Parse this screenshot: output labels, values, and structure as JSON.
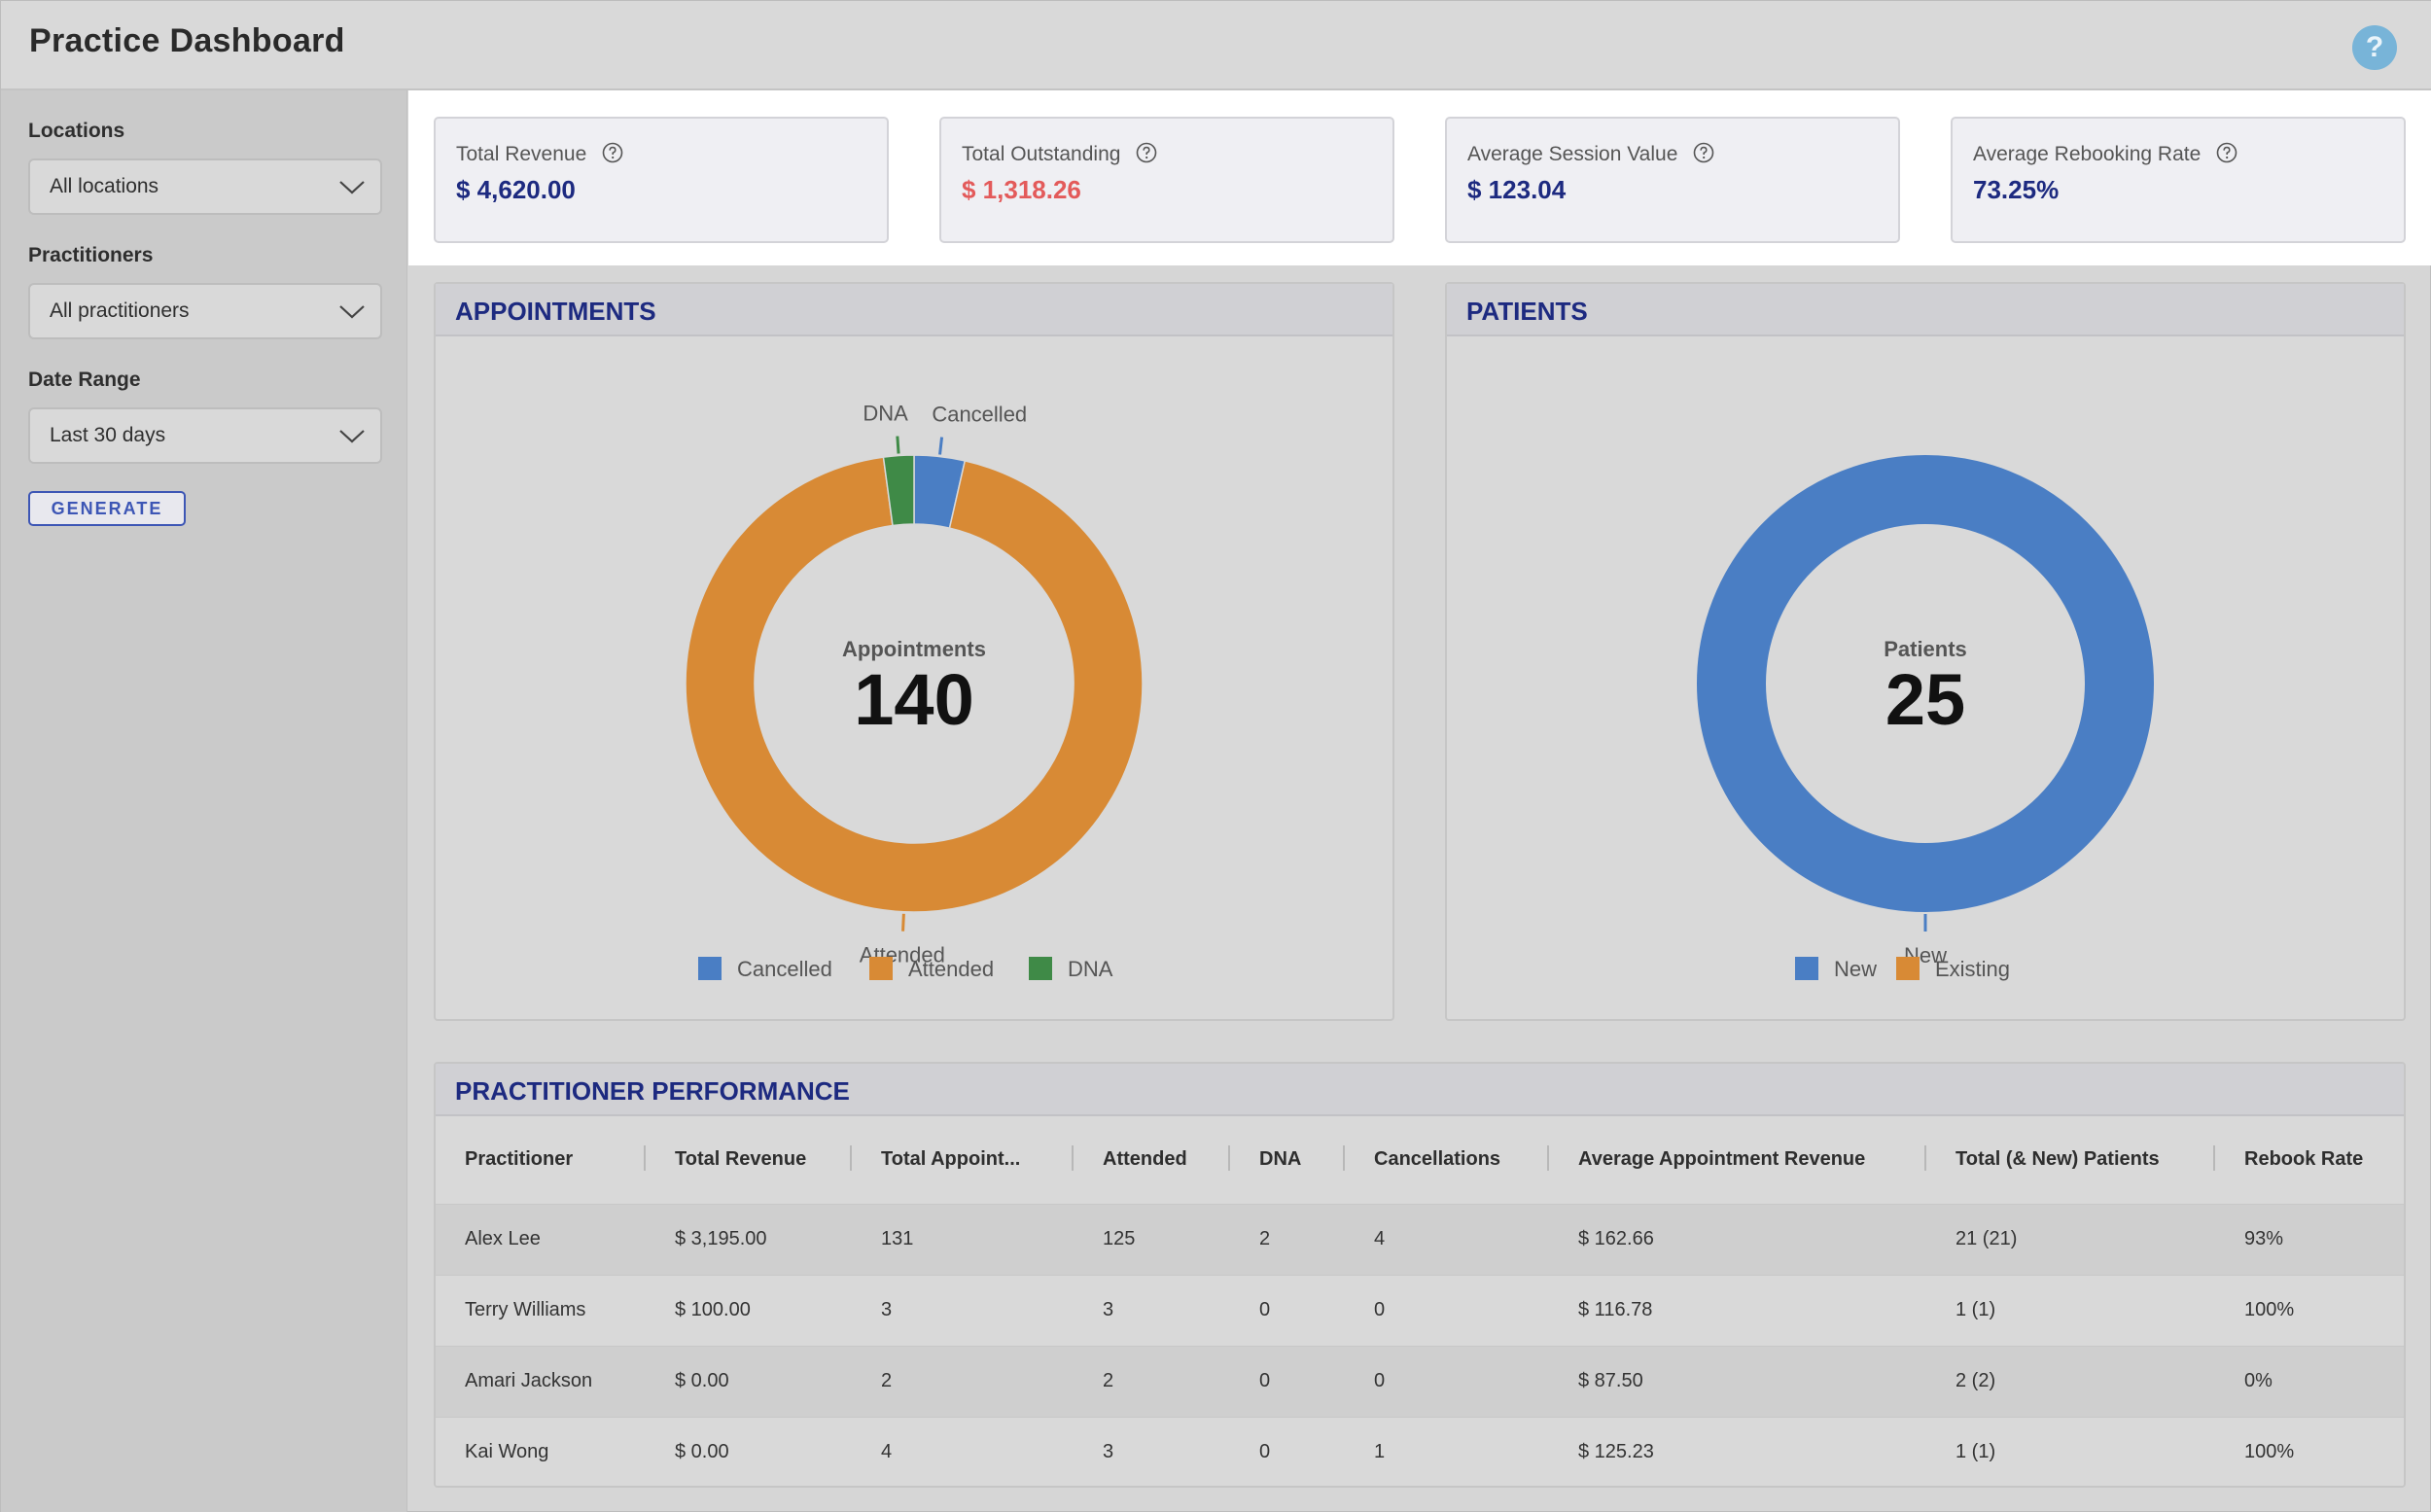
{
  "header": {
    "title": "Practice Dashboard",
    "help_label": "?"
  },
  "sidebar": {
    "filters": [
      {
        "label": "Locations",
        "value": "All locations"
      },
      {
        "label": "Practitioners",
        "value": "All practitioners"
      },
      {
        "label": "Date Range",
        "value": "Last 30 days"
      }
    ],
    "generate_label": "GENERATE"
  },
  "kpis": [
    {
      "label": "Total Revenue",
      "value": "$ 4,620.00"
    },
    {
      "label": "Total Outstanding",
      "value": "$ 1,318.26"
    },
    {
      "label": "Average Session Value",
      "value": "$ 123.04"
    },
    {
      "label": "Average Rebooking Rate",
      "value": "73.25%"
    }
  ],
  "colors": {
    "blue": "#4a7ec4",
    "orange": "#d88a35",
    "green": "#3f8a47",
    "navy": "#1d2a80",
    "alert": "#e35a5a"
  },
  "panels": {
    "appointments_title": "APPOINTMENTS",
    "patients_title": "PATIENTS",
    "performance_title": "PRACTITIONER PERFORMANCE"
  },
  "chart_data": [
    {
      "type": "pie",
      "title": "APPOINTMENTS",
      "center_label": "Appointments",
      "center_value": "140",
      "categories": [
        "Cancelled",
        "Attended",
        "DNA"
      ],
      "values": [
        5,
        132,
        3
      ],
      "colors": [
        "#4a7ec4",
        "#d88a35",
        "#3f8a47"
      ],
      "legend": [
        "Cancelled",
        "Attended",
        "DNA"
      ],
      "legend_position": "bottom"
    },
    {
      "type": "pie",
      "title": "PATIENTS",
      "center_label": "Patients",
      "center_value": "25",
      "categories": [
        "New",
        "Existing"
      ],
      "values": [
        25,
        0
      ],
      "colors": [
        "#4a7ec4",
        "#d88a35"
      ],
      "legend": [
        "New",
        "Existing"
      ],
      "legend_position": "bottom"
    }
  ],
  "table": {
    "columns": [
      "Practitioner",
      "Total Revenue",
      "Total Appoint...",
      "Attended",
      "DNA",
      "Cancellations",
      "Average Appointment Revenue",
      "Total (& New) Patients",
      "Rebook Rate"
    ],
    "rows": [
      [
        "Alex Lee",
        "$ 3,195.00",
        "131",
        "125",
        "2",
        "4",
        "$ 162.66",
        "21 (21)",
        "93%"
      ],
      [
        "Terry Williams",
        "$ 100.00",
        "3",
        "3",
        "0",
        "0",
        "$ 116.78",
        "1 (1)",
        "100%"
      ],
      [
        "Amari Jackson",
        "$ 0.00",
        "2",
        "2",
        "0",
        "0",
        "$ 87.50",
        "2 (2)",
        "0%"
      ],
      [
        "Kai Wong",
        "$ 0.00",
        "4",
        "3",
        "0",
        "1",
        "$ 125.23",
        "1 (1)",
        "100%"
      ]
    ]
  }
}
